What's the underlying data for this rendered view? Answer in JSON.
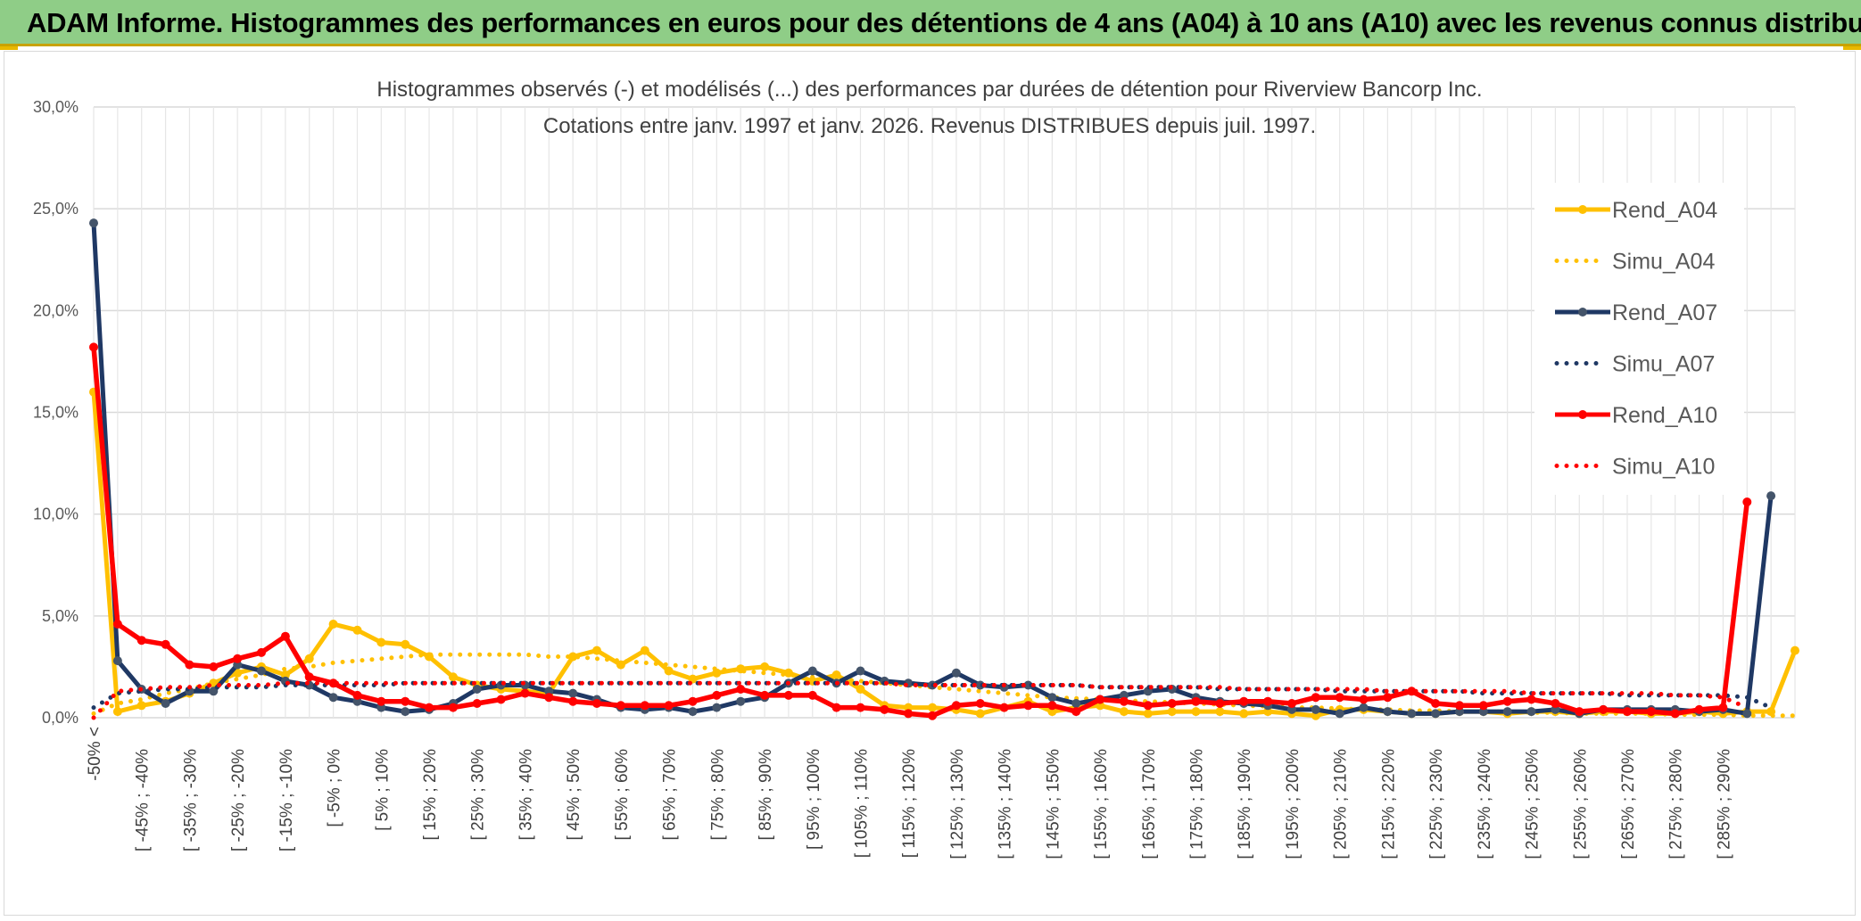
{
  "header": {
    "title": "ADAM Informe. Histogrammes des performances en euros pour des détentions de 4 ans (A04) à 10 ans (A10) avec les revenus connus distribués"
  },
  "colors": {
    "banner": "#8fcd87",
    "a04": "#ffc000",
    "a07": "#1f3864",
    "a07_marker": "#44546a",
    "a10": "#ff0000",
    "grid": "#d9d9d9"
  },
  "chart_data": {
    "type": "line",
    "title": "Histogrammes observés (-) et modélisés (...) des performances par durées de détention pour Riverview Bancorp Inc.",
    "subtitle": "Cotations entre janv. 1997 et janv. 2026. Revenus DISTRIBUES depuis juil. 1997.",
    "ylim": [
      0,
      30
    ],
    "yticks": [
      "0,0%",
      "5,0%",
      "10,0%",
      "15,0%",
      "20,0%",
      "25,0%",
      "30,0%"
    ],
    "xtick_labels": [
      "-50% <",
      "[ -45% ; -40%",
      "[ -35% ; -30%",
      "[ -25% ; -20%",
      "[ -15% ; -10%",
      "[ -5% ; 0%",
      "[ 5% ; 10%",
      "[ 15% ; 20%",
      "[ 25% ; 30%",
      "[ 35% ; 40%",
      "[ 45% ; 50%",
      "[ 55% ; 60%",
      "[ 65% ; 70%",
      "[ 75% ; 80%",
      "[ 85% ; 90%",
      "[ 95% ; 100%",
      "[ 105% ; 110%",
      "[ 115% ; 120%",
      "[ 125% ; 130%",
      "[ 135% ; 140%",
      "[ 145% ; 150%",
      "[ 155% ; 160%",
      "[ 165% ; 170%",
      "[ 175% ; 180%",
      "[ 185% ; 190%",
      "[ 195% ; 200%",
      "[ 205% ; 210%",
      "[ 215% ; 220%",
      "[ 225% ; 230%",
      "[ 235% ; 240%",
      "[ 245% ; 250%",
      "[ 255% ; 260%",
      "[ 265% ; 270%",
      "[ 275% ; 280%",
      "[ 285% ; 290%"
    ],
    "legend_position": "right",
    "series": [
      {
        "name": "Rend_A04",
        "style": "solid",
        "color": "#ffc000",
        "values": [
          16.0,
          0.3,
          0.6,
          0.8,
          1.2,
          1.7,
          2.2,
          2.5,
          2.1,
          2.9,
          4.6,
          4.3,
          3.7,
          3.6,
          3.0,
          2.0,
          1.6,
          1.4,
          1.3,
          1.2,
          3.0,
          3.3,
          2.6,
          3.3,
          2.3,
          1.9,
          2.2,
          2.4,
          2.5,
          2.2,
          1.8,
          2.1,
          1.4,
          0.6,
          0.5,
          0.5,
          0.4,
          0.2,
          0.5,
          0.8,
          0.3,
          0.5,
          0.6,
          0.3,
          0.2,
          0.3,
          0.3,
          0.3,
          0.2,
          0.3,
          0.2,
          0.1,
          0.4,
          0.4,
          0.3,
          0.2,
          0.2,
          0.3,
          0.3,
          0.2,
          0.3,
          0.3,
          0.2,
          0.3,
          0.3,
          0.2,
          0.2,
          0.3,
          0.2,
          0.3,
          0.3,
          3.3
        ]
      },
      {
        "name": "Simu_A04",
        "style": "dotted",
        "color": "#ffc000",
        "values": [
          0.2,
          0.7,
          0.9,
          1.2,
          1.4,
          1.7,
          1.9,
          2.1,
          2.4,
          2.5,
          2.7,
          2.8,
          2.9,
          3.0,
          3.1,
          3.1,
          3.1,
          3.1,
          3.1,
          3.0,
          3.0,
          2.9,
          2.8,
          2.7,
          2.6,
          2.5,
          2.4,
          2.3,
          2.2,
          2.1,
          2.0,
          1.9,
          1.8,
          1.7,
          1.6,
          1.5,
          1.4,
          1.3,
          1.2,
          1.1,
          1.0,
          0.95,
          0.9,
          0.85,
          0.8,
          0.75,
          0.7,
          0.65,
          0.6,
          0.55,
          0.5,
          0.5,
          0.45,
          0.4,
          0.4,
          0.35,
          0.35,
          0.3,
          0.3,
          0.3,
          0.25,
          0.25,
          0.2,
          0.2,
          0.2,
          0.2,
          0.15,
          0.15,
          0.15,
          0.1,
          0.1,
          0.1
        ]
      },
      {
        "name": "Rend_A07",
        "style": "solid",
        "color": "#1f3864",
        "values": [
          24.3,
          2.8,
          1.4,
          0.7,
          1.3,
          1.3,
          2.6,
          2.3,
          1.8,
          1.6,
          1.0,
          0.8,
          0.5,
          0.3,
          0.4,
          0.7,
          1.4,
          1.6,
          1.6,
          1.3,
          1.2,
          0.9,
          0.5,
          0.4,
          0.5,
          0.3,
          0.5,
          0.8,
          1.0,
          1.7,
          2.3,
          1.7,
          2.3,
          1.8,
          1.7,
          1.6,
          2.2,
          1.6,
          1.5,
          1.6,
          1.0,
          0.7,
          0.9,
          1.1,
          1.3,
          1.4,
          1.0,
          0.8,
          0.7,
          0.6,
          0.4,
          0.4,
          0.2,
          0.5,
          0.3,
          0.2,
          0.2,
          0.3,
          0.3,
          0.3,
          0.3,
          0.4,
          0.2,
          0.4,
          0.4,
          0.4,
          0.4,
          0.3,
          0.4,
          0.2,
          10.9
        ]
      },
      {
        "name": "Simu_A07",
        "style": "dotted",
        "color": "#1f3864",
        "values": [
          0.5,
          1.2,
          1.3,
          1.4,
          1.4,
          1.5,
          1.5,
          1.5,
          1.6,
          1.6,
          1.6,
          1.6,
          1.6,
          1.7,
          1.7,
          1.7,
          1.7,
          1.7,
          1.7,
          1.7,
          1.7,
          1.7,
          1.7,
          1.7,
          1.7,
          1.7,
          1.7,
          1.7,
          1.7,
          1.7,
          1.7,
          1.7,
          1.7,
          1.7,
          1.7,
          1.6,
          1.6,
          1.6,
          1.6,
          1.6,
          1.6,
          1.6,
          1.5,
          1.5,
          1.5,
          1.5,
          1.5,
          1.4,
          1.4,
          1.4,
          1.4,
          1.4,
          1.3,
          1.3,
          1.3,
          1.3,
          1.3,
          1.3,
          1.2,
          1.2,
          1.2,
          1.2,
          1.2,
          1.2,
          1.1,
          1.1,
          1.1,
          1.1,
          1.1,
          1.0,
          0.5
        ]
      },
      {
        "name": "Rend_A10",
        "style": "solid",
        "color": "#ff0000",
        "values": [
          18.2,
          4.6,
          3.8,
          3.6,
          2.6,
          2.5,
          2.9,
          3.2,
          4.0,
          2.0,
          1.7,
          1.1,
          0.8,
          0.8,
          0.5,
          0.5,
          0.7,
          0.9,
          1.2,
          1.0,
          0.8,
          0.7,
          0.6,
          0.6,
          0.6,
          0.8,
          1.1,
          1.4,
          1.1,
          1.1,
          1.1,
          0.5,
          0.5,
          0.4,
          0.2,
          0.1,
          0.6,
          0.7,
          0.5,
          0.6,
          0.6,
          0.3,
          0.9,
          0.8,
          0.6,
          0.7,
          0.8,
          0.7,
          0.8,
          0.8,
          0.7,
          1.0,
          1.0,
          0.9,
          1.0,
          1.3,
          0.7,
          0.6,
          0.6,
          0.8,
          0.9,
          0.7,
          0.3,
          0.4,
          0.3,
          0.3,
          0.2,
          0.4,
          0.5,
          10.6
        ]
      },
      {
        "name": "Simu_A10",
        "style": "dotted",
        "color": "#ff0000",
        "values": [
          0.0,
          1.3,
          1.4,
          1.5,
          1.5,
          1.6,
          1.6,
          1.6,
          1.7,
          1.7,
          1.7,
          1.7,
          1.7,
          1.7,
          1.7,
          1.7,
          1.7,
          1.7,
          1.7,
          1.7,
          1.7,
          1.7,
          1.7,
          1.7,
          1.7,
          1.7,
          1.7,
          1.7,
          1.7,
          1.7,
          1.7,
          1.7,
          1.7,
          1.7,
          1.6,
          1.6,
          1.6,
          1.6,
          1.6,
          1.6,
          1.6,
          1.6,
          1.5,
          1.5,
          1.5,
          1.5,
          1.5,
          1.5,
          1.4,
          1.4,
          1.4,
          1.4,
          1.4,
          1.4,
          1.3,
          1.3,
          1.3,
          1.3,
          1.3,
          1.3,
          1.2,
          1.2,
          1.2,
          1.2,
          1.2,
          1.2,
          1.1,
          1.1,
          1.0,
          0.5
        ]
      }
    ]
  }
}
